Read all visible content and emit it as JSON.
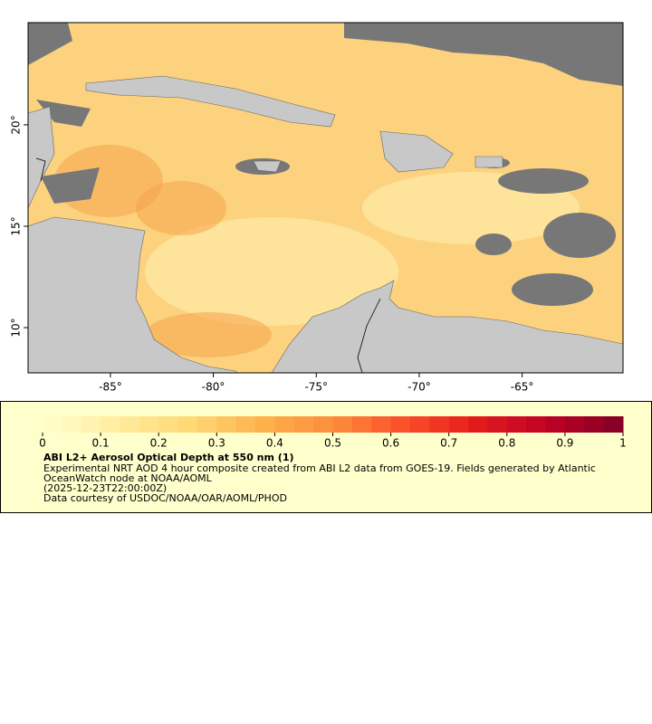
{
  "map": {
    "xlim": [
      -89,
      -60.1
    ],
    "ylim": [
      7.77,
      25.04
    ],
    "xticks": [
      {
        "value": -85,
        "label": "-85°"
      },
      {
        "value": -80,
        "label": "-80°"
      },
      {
        "value": -75,
        "label": "-75°"
      },
      {
        "value": -70,
        "label": "-70°"
      },
      {
        "value": -65,
        "label": "-65°"
      }
    ],
    "yticks": [
      {
        "value": 10,
        "label": "10°"
      },
      {
        "value": 15,
        "label": "15°"
      },
      {
        "value": 20,
        "label": "20°"
      }
    ]
  },
  "legend": {
    "colorbar": {
      "lim": [
        0,
        1
      ],
      "ticks": [
        0,
        0.1,
        0.2,
        0.3,
        0.4,
        0.5,
        0.6,
        0.7,
        0.8,
        0.9,
        1
      ]
    },
    "title": "ABI L2+ Aerosol Optical Depth at 550 nm (1)",
    "lines": [
      "Experimental NRT AOD 4 hour composite created from ABI L2 data from GOES-19. Fields generated by Atlantic",
      "OceanWatch node at NOAA/AOML",
      "(2025-12-23T22:00:00Z)",
      "Data courtesy of USDOC/NOAA/OAR/AOML/PHOD"
    ]
  }
}
